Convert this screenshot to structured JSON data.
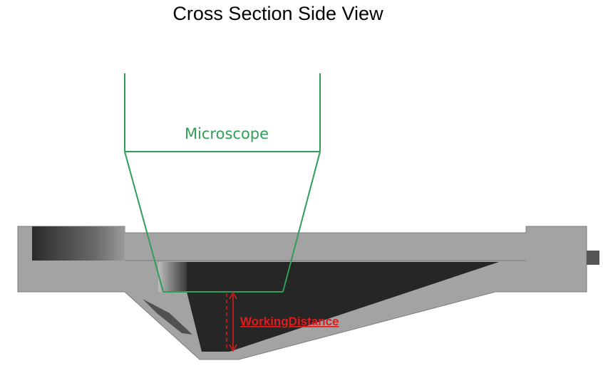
{
  "title": "Cross Section Side View",
  "microscope": {
    "label": "Microscope"
  },
  "working_distance": {
    "label": "WorkingDistance"
  },
  "colors": {
    "microscope_outline": "#2f9e57",
    "housing": "#a3a3a3",
    "housing_edge": "#7d7d7d",
    "cavity": "#262626",
    "annotation": "#e01b1b"
  }
}
